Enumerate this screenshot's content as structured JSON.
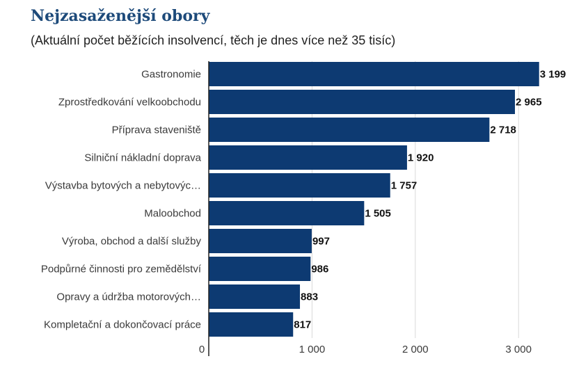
{
  "chart_data": {
    "type": "bar",
    "orientation": "horizontal",
    "title": "Nejzasaženější obory",
    "subtitle": "(Aktuální počet běžících insolvencí, těch je dnes více než 35 tisíc)",
    "categories": [
      "Gastronomie",
      "Zprostředkování velkoobchodu",
      "Příprava staveniště",
      "Silniční nákladní doprava",
      "Výstavba bytových a nebytovýc…",
      "Maloobchod",
      "Výroba, obchod a další služby",
      "Podpůrné činnosti pro zemědělství",
      "Opravy a údržba motorových…",
      "Kompletační a dokončovací práce"
    ],
    "values": [
      3199,
      2965,
      2718,
      1920,
      1757,
      1505,
      997,
      986,
      883,
      817
    ],
    "value_labels": [
      "3 199",
      "2 965",
      "2 718",
      "1 920",
      "1 757",
      "1 505",
      "997",
      "986",
      "883",
      "817"
    ],
    "xlim": [
      0,
      3400
    ],
    "ticks": [
      0,
      1000,
      2000,
      3000
    ],
    "tick_labels": [
      "0",
      "1 000",
      "2 000",
      "3 000"
    ],
    "grid": true,
    "bar_color": "#0d3a72"
  }
}
